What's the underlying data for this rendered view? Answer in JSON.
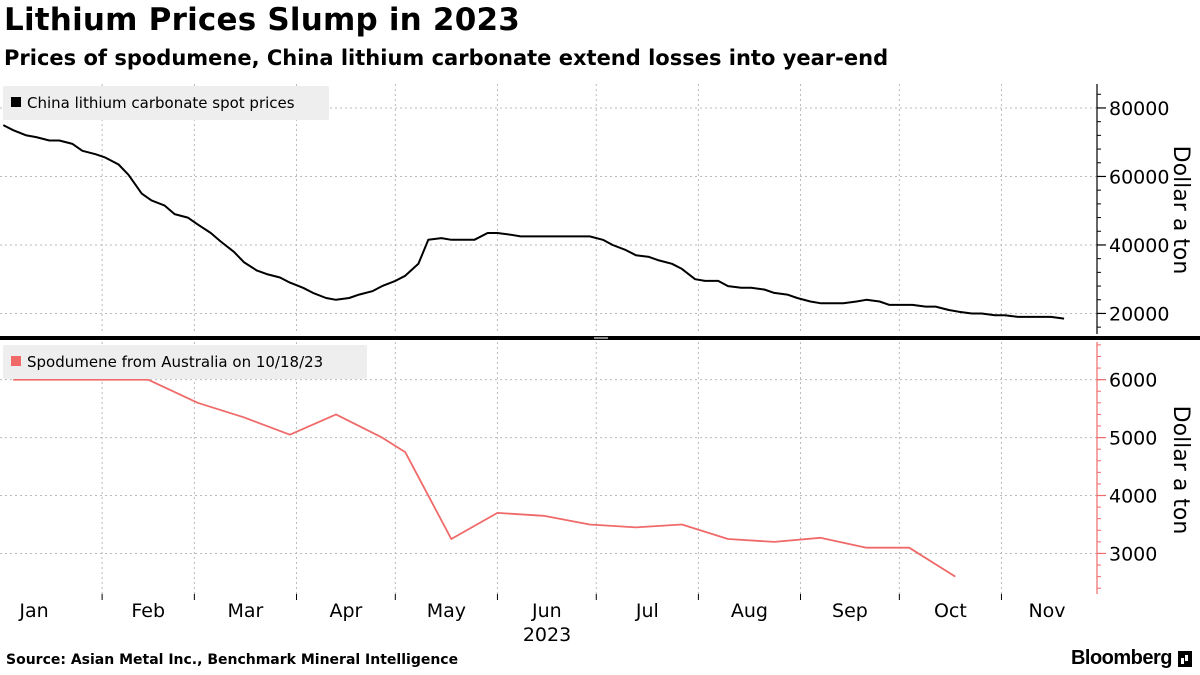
{
  "header": {
    "title": "Lithium Prices Slump in 2023",
    "subtitle": "Prices of spodumene, China lithium carbonate extend losses into year-end"
  },
  "footer": {
    "source": "Source: Asian Metal Inc., Benchmark Mineral Intelligence",
    "brand": "Bloomberg"
  },
  "colors": {
    "carbonate": "#000000",
    "spodumene": "#f06a6a",
    "grid": "#bbbbbb",
    "legend_bg": "#eeeeee"
  },
  "chart_data": [
    {
      "type": "line",
      "panel": "top",
      "series": [
        {
          "name": "China lithium carbonate spot prices",
          "x": [
            "2023-01-02",
            "2023-01-05",
            "2023-01-09",
            "2023-01-12",
            "2023-01-16",
            "2023-01-19",
            "2023-01-23",
            "2023-01-26",
            "2023-01-30",
            "2023-02-02",
            "2023-02-06",
            "2023-02-09",
            "2023-02-13",
            "2023-02-16",
            "2023-02-20",
            "2023-02-23",
            "2023-02-27",
            "2023-03-02",
            "2023-03-06",
            "2023-03-09",
            "2023-03-13",
            "2023-03-16",
            "2023-03-20",
            "2023-03-23",
            "2023-03-27",
            "2023-03-30",
            "2023-04-03",
            "2023-04-06",
            "2023-04-10",
            "2023-04-13",
            "2023-04-17",
            "2023-04-20",
            "2023-04-24",
            "2023-04-27",
            "2023-05-01",
            "2023-05-04",
            "2023-05-08",
            "2023-05-11",
            "2023-05-15",
            "2023-05-18",
            "2023-05-22",
            "2023-05-25",
            "2023-05-29",
            "2023-06-01",
            "2023-06-05",
            "2023-06-08",
            "2023-06-12",
            "2023-06-15",
            "2023-06-19",
            "2023-06-22",
            "2023-06-26",
            "2023-06-29",
            "2023-07-03",
            "2023-07-06",
            "2023-07-10",
            "2023-07-13",
            "2023-07-17",
            "2023-07-20",
            "2023-07-24",
            "2023-07-27",
            "2023-07-31",
            "2023-08-03",
            "2023-08-07",
            "2023-08-10",
            "2023-08-14",
            "2023-08-17",
            "2023-08-21",
            "2023-08-24",
            "2023-08-28",
            "2023-08-31",
            "2023-09-04",
            "2023-09-07",
            "2023-09-11",
            "2023-09-14",
            "2023-09-18",
            "2023-09-21",
            "2023-09-25",
            "2023-09-28",
            "2023-10-02",
            "2023-10-05",
            "2023-10-09",
            "2023-10-12",
            "2023-10-16",
            "2023-10-19",
            "2023-10-23",
            "2023-10-26",
            "2023-10-30",
            "2023-11-02",
            "2023-11-06",
            "2023-11-09",
            "2023-11-13",
            "2023-11-16",
            "2023-11-20"
          ],
          "values": [
            75000,
            73500,
            72000,
            71500,
            70500,
            70500,
            69500,
            67500,
            66500,
            65500,
            63500,
            60500,
            55000,
            53000,
            51500,
            49000,
            48000,
            46000,
            43500,
            41000,
            38000,
            35000,
            32500,
            31500,
            30500,
            29000,
            27500,
            26000,
            24500,
            24000,
            24500,
            25500,
            26500,
            28000,
            29500,
            31000,
            34500,
            41500,
            42000,
            41500,
            41500,
            41500,
            43500,
            43500,
            43000,
            42500,
            42500,
            42500,
            42500,
            42500,
            42500,
            42500,
            41500,
            40000,
            38500,
            37000,
            36500,
            35500,
            34500,
            33000,
            30000,
            29500,
            29500,
            28000,
            27500,
            27500,
            27000,
            26000,
            25500,
            24500,
            23500,
            23000,
            23000,
            23000,
            23500,
            24000,
            23500,
            22500,
            22500,
            22500,
            22000,
            22000,
            21000,
            20500,
            20000,
            20000,
            19500,
            19500,
            19000,
            19000,
            19000,
            19000,
            18500
          ]
        }
      ],
      "ylabel": "Dollar a ton",
      "yticks": [
        20000,
        40000,
        60000,
        80000
      ],
      "ylim": [
        14000,
        87000
      ]
    },
    {
      "type": "line",
      "panel": "bottom",
      "series": [
        {
          "name": "Spodumene from Australia on 10/18/23",
          "x": [
            "2023-01-05",
            "2023-02-01",
            "2023-02-15",
            "2023-03-02",
            "2023-03-16",
            "2023-03-30",
            "2023-04-13",
            "2023-04-27",
            "2023-05-04",
            "2023-05-18",
            "2023-06-01",
            "2023-06-15",
            "2023-06-29",
            "2023-07-13",
            "2023-07-27",
            "2023-08-10",
            "2023-08-24",
            "2023-09-07",
            "2023-09-21",
            "2023-10-04",
            "2023-10-18"
          ],
          "values": [
            6000,
            6000,
            6000,
            5600,
            5350,
            5050,
            5400,
            5000,
            4750,
            3250,
            3700,
            3650,
            3500,
            3450,
            3500,
            3250,
            3200,
            3270,
            3100,
            3100,
            2600
          ]
        }
      ],
      "ylabel": "Dollar a ton",
      "yticks": [
        3000,
        4000,
        5000,
        6000
      ],
      "ylim": [
        2300,
        6650
      ]
    }
  ],
  "xaxis": {
    "month_labels": [
      "Jan",
      "Feb",
      "Mar",
      "Apr",
      "May",
      "Jun",
      "Jul",
      "Aug",
      "Sep",
      "Oct",
      "Nov"
    ],
    "year_label": "2023",
    "start": "2023-01-01",
    "end": "2023-11-30"
  }
}
